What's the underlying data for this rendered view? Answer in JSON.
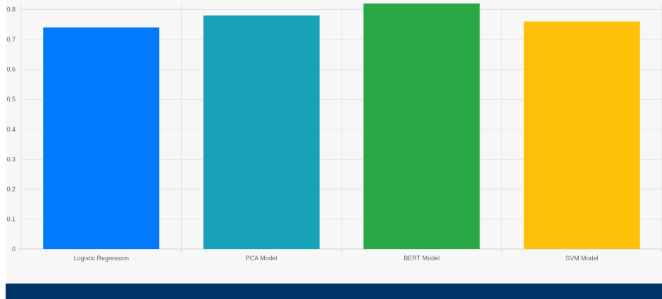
{
  "chart_data": {
    "type": "bar",
    "categories": [
      "Logistic Regression",
      "PCA Model",
      "BERT Model",
      "SVM Model"
    ],
    "values": [
      0.74,
      0.78,
      0.82,
      0.76
    ],
    "colors": [
      "#007bff",
      "#17a2b8",
      "#28a745",
      "#ffc107"
    ],
    "y_ticks": [
      "0",
      "0.1",
      "0.2",
      "0.3",
      "0.4",
      "0.5",
      "0.6",
      "0.7",
      "0.8"
    ],
    "ylim": [
      0,
      0.82
    ],
    "grid": true,
    "title": "",
    "xlabel": "",
    "ylabel": ""
  },
  "theme": {
    "panel_background": "#f7f7f7",
    "grid_color": "#e3e3e3",
    "tick_color": "#666666",
    "footer_color": "#003366"
  }
}
